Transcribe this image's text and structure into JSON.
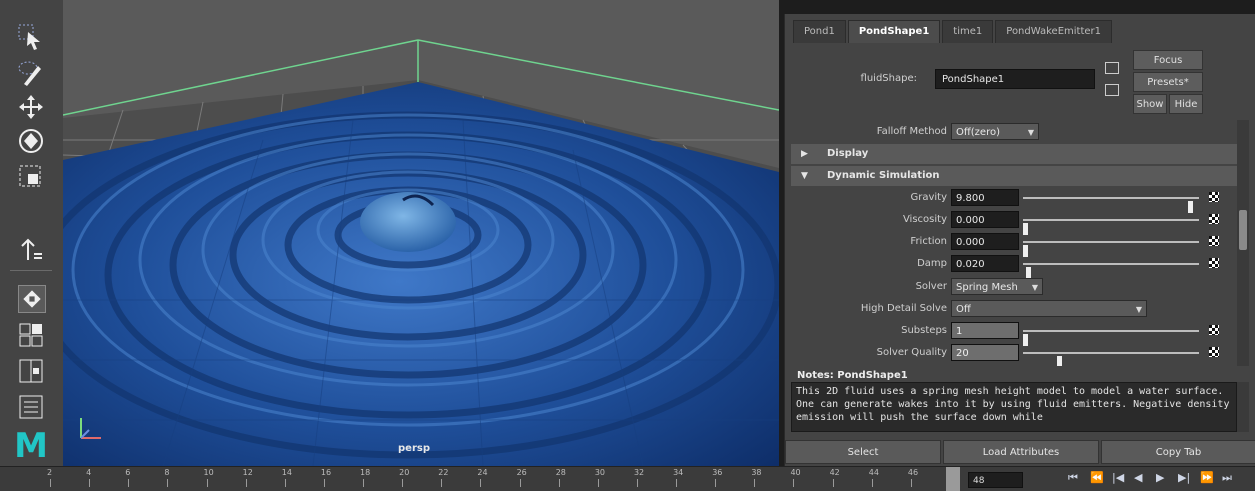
{
  "toolbox": {
    "tools": [
      "select-icon",
      "lasso-icon",
      "move-icon",
      "rotate-icon",
      "scale-icon",
      "soft-select-icon",
      "snap-icon",
      "layout-icon",
      "split-icon",
      "outliner-icon"
    ],
    "logo_text": "M"
  },
  "viewport": {
    "camera_label": "persp",
    "water_color": "#1f4f9a",
    "grid_color": "#7a7a7a",
    "box_edge_color": "#6fd48f"
  },
  "attribute_editor": {
    "tabs": [
      "Pond1",
      "PondShape1",
      "time1",
      "PondWakeEmitter1"
    ],
    "active_tab": "PondShape1",
    "shape_label": "fluidShape:",
    "shape_value": "PondShape1",
    "buttons": {
      "focus": "Focus",
      "presets": "Presets*",
      "show": "Show",
      "hide": "Hide"
    },
    "falloff": {
      "label": "Falloff Method",
      "value": "Off(zero)"
    },
    "sections": {
      "display": "Display",
      "dynamic": "Dynamic Simulation"
    },
    "attrs": [
      {
        "label": "Gravity",
        "value": "9.800",
        "slider": 0.97
      },
      {
        "label": "Viscosity",
        "value": "0.000",
        "slider": 0.0
      },
      {
        "label": "Friction",
        "value": "0.000",
        "slider": 0.0
      },
      {
        "label": "Damp",
        "value": "0.020",
        "slider": 0.02
      }
    ],
    "solver": {
      "label": "Solver",
      "value": "Spring Mesh"
    },
    "high_detail": {
      "label": "High Detail Solve",
      "value": "Off"
    },
    "substeps": {
      "label": "Substeps",
      "value": "1",
      "slider": 0.0
    },
    "solver_quality": {
      "label": "Solver Quality",
      "value": "20",
      "slider": 0.2
    },
    "notes_title": "Notes: PondShape1",
    "notes_text": "This 2D fluid uses a spring mesh height model to model a water surface. One can generate wakes into it by using fluid emitters. Negative density emission will push the surface down while",
    "bottom_buttons": {
      "select": "Select",
      "load": "Load Attributes",
      "copy": "Copy Tab"
    }
  },
  "timeline": {
    "ticks": [
      "2",
      "4",
      "6",
      "8",
      "10",
      "12",
      "14",
      "16",
      "18",
      "20",
      "22",
      "24",
      "26",
      "28",
      "30",
      "32",
      "34",
      "36",
      "38",
      "40",
      "42",
      "44",
      "46"
    ],
    "current_frame_field": "48",
    "playback": [
      "⏮",
      "⏪",
      "|◀",
      "◀",
      "▶",
      "▶|",
      "⏩",
      "⏭"
    ]
  }
}
